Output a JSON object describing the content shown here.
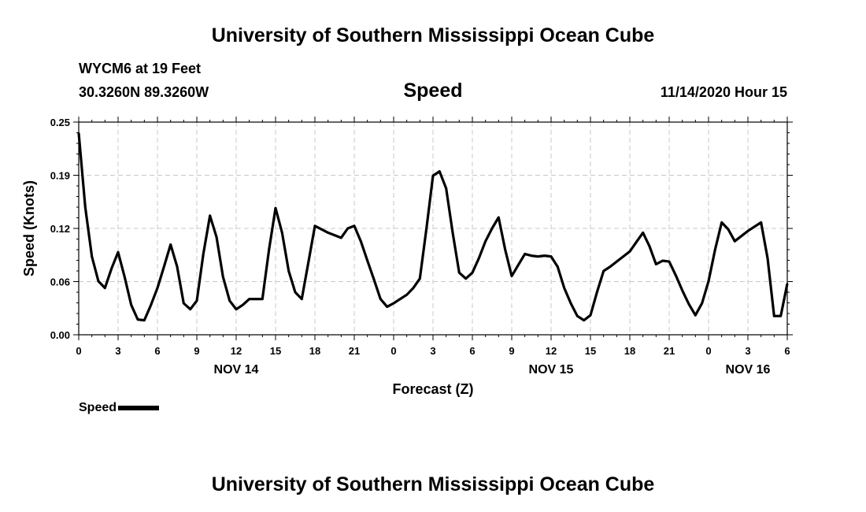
{
  "header": {
    "title": "University of Southern Mississippi Ocean Cube",
    "station": "WYCM6 at 19 Feet",
    "location": "30.3260N 89.3260W",
    "timestamp": "11/14/2020 Hour 15"
  },
  "footer": {
    "title": "University of Southern Mississippi Ocean Cube"
  },
  "legend": {
    "label": "Speed",
    "color": "#000000"
  },
  "chart_data": {
    "type": "line",
    "title": "Speed",
    "xlabel": "Forecast (Z)",
    "ylabel": "Speed (Knots)",
    "ylim": [
      0,
      0.25
    ],
    "xlim": [
      0,
      54
    ],
    "grid": true,
    "y_ticks": [
      {
        "value": 0,
        "label": "0.00"
      },
      {
        "value": 0.0625,
        "label": "0.06"
      },
      {
        "value": 0.125,
        "label": "0.12"
      },
      {
        "value": 0.1875,
        "label": "0.19"
      },
      {
        "value": 0.25,
        "label": "0.25"
      }
    ],
    "x_ticks": [
      {
        "value": 0,
        "label": "0"
      },
      {
        "value": 3,
        "label": "3"
      },
      {
        "value": 6,
        "label": "6"
      },
      {
        "value": 9,
        "label": "9"
      },
      {
        "value": 12,
        "label": "12"
      },
      {
        "value": 15,
        "label": "15"
      },
      {
        "value": 18,
        "label": "18"
      },
      {
        "value": 21,
        "label": "21"
      },
      {
        "value": 24,
        "label": "0"
      },
      {
        "value": 27,
        "label": "3"
      },
      {
        "value": 30,
        "label": "6"
      },
      {
        "value": 33,
        "label": "9"
      },
      {
        "value": 36,
        "label": "12"
      },
      {
        "value": 39,
        "label": "15"
      },
      {
        "value": 42,
        "label": "18"
      },
      {
        "value": 45,
        "label": "21"
      },
      {
        "value": 48,
        "label": "0"
      },
      {
        "value": 51,
        "label": "3"
      },
      {
        "value": 54,
        "label": "6"
      }
    ],
    "date_labels": [
      {
        "value": 12,
        "label": "NOV 14"
      },
      {
        "value": 36,
        "label": "NOV 15"
      },
      {
        "value": 51,
        "label": "NOV 16"
      }
    ],
    "series": [
      {
        "name": "Speed",
        "x": [
          0,
          0.5,
          1,
          1.5,
          2,
          2.5,
          3,
          3.5,
          4,
          4.5,
          5,
          5.5,
          6,
          6.5,
          7,
          7.5,
          8,
          8.5,
          9,
          9.5,
          10,
          10.5,
          11,
          11.5,
          12,
          12.5,
          13,
          13.5,
          14,
          14.5,
          15,
          15.5,
          16,
          16.5,
          17,
          17.5,
          18,
          18.5,
          19,
          19.5,
          20,
          20.5,
          21,
          21.5,
          22,
          22.5,
          23,
          23.5,
          24,
          24.5,
          25,
          25.5,
          26,
          26.5,
          27,
          27.5,
          28,
          28.5,
          29,
          29.5,
          30,
          30.5,
          31,
          31.5,
          32,
          32.5,
          33,
          33.5,
          34,
          34.5,
          35,
          35.5,
          36,
          36.5,
          37,
          37.5,
          38,
          38.5,
          39,
          39.5,
          40,
          40.5,
          41,
          41.5,
          42,
          42.5,
          43,
          43.5,
          44,
          44.5,
          45,
          45.5,
          46,
          46.5,
          47,
          47.5,
          48,
          48.5,
          49,
          49.5,
          50,
          50.5,
          51,
          51.5,
          52,
          52.5,
          53,
          53.5,
          54
        ],
        "values": [
          0.237,
          0.15,
          0.092,
          0.063,
          0.055,
          0.078,
          0.097,
          0.068,
          0.035,
          0.018,
          0.017,
          0.035,
          0.055,
          0.08,
          0.106,
          0.08,
          0.037,
          0.03,
          0.04,
          0.095,
          0.14,
          0.115,
          0.068,
          0.04,
          0.03,
          0.035,
          0.042,
          0.042,
          0.042,
          0.1,
          0.149,
          0.12,
          0.075,
          0.05,
          0.042,
          0.085,
          0.128,
          0.124,
          0.12,
          0.117,
          0.114,
          0.125,
          0.128,
          0.11,
          0.087,
          0.065,
          0.042,
          0.033,
          0.037,
          0.042,
          0.047,
          0.055,
          0.066,
          0.125,
          0.187,
          0.192,
          0.172,
          0.12,
          0.073,
          0.066,
          0.073,
          0.09,
          0.11,
          0.125,
          0.138,
          0.1,
          0.069,
          0.082,
          0.095,
          0.093,
          0.092,
          0.093,
          0.092,
          0.08,
          0.055,
          0.037,
          0.022,
          0.017,
          0.023,
          0.05,
          0.075,
          0.08,
          0.086,
          0.092,
          0.098,
          0.109,
          0.12,
          0.104,
          0.083,
          0.087,
          0.086,
          0.07,
          0.052,
          0.036,
          0.023,
          0.037,
          0.063,
          0.1,
          0.132,
          0.124,
          0.11,
          0.116,
          0.122,
          0.127,
          0.132,
          0.09,
          0.022,
          0.022,
          0.06
        ]
      }
    ]
  }
}
